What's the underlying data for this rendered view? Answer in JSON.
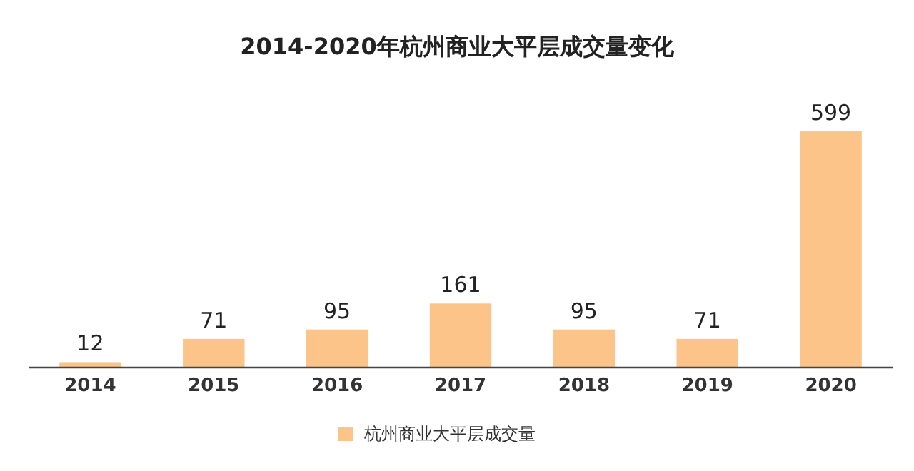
{
  "chart_data": {
    "type": "bar",
    "title": "2014-2020年杭州商业大平层成交量变化",
    "categories": [
      "2014",
      "2015",
      "2016",
      "2017",
      "2018",
      "2019",
      "2020"
    ],
    "series": [
      {
        "name": "杭州商业大平层成交量",
        "color": "#fdc48a",
        "values": [
          12,
          71,
          95,
          161,
          95,
          71,
          599
        ]
      }
    ],
    "data_labels": true,
    "legend": "bottom"
  }
}
